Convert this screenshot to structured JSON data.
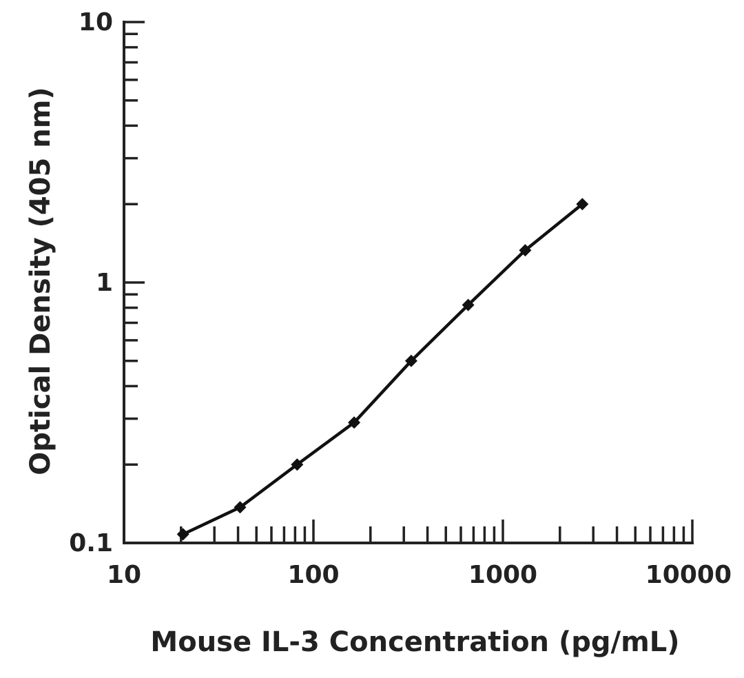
{
  "chart_data": {
    "type": "line",
    "title": "",
    "xlabel": "Mouse IL-3 Concentration (pg/mL)",
    "ylabel": "Optical Density (405 nm)",
    "xscale": "log",
    "yscale": "log",
    "xlim": [
      10,
      10000
    ],
    "ylim": [
      0.1,
      10
    ],
    "xticklabels": [
      "10",
      "100",
      "1000",
      "10000"
    ],
    "yticklabels": [
      "0.1",
      "1",
      "10"
    ],
    "grid": false,
    "series": [
      {
        "x": [
          20.5,
          41,
          82,
          164,
          328,
          656,
          1312,
          2625
        ],
        "y": [
          0.108,
          0.137,
          0.2,
          0.29,
          0.5,
          0.82,
          1.33,
          2.0
        ]
      }
    ],
    "colors": {
      "line": "#111111",
      "axis": "#222222"
    }
  }
}
